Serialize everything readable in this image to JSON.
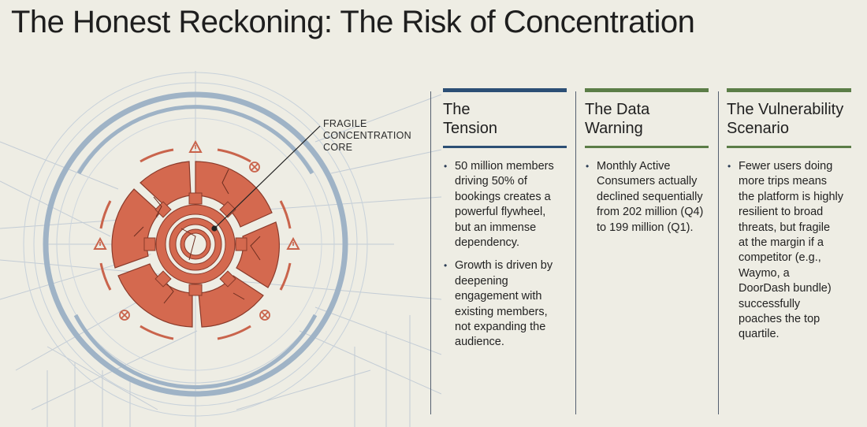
{
  "title": "The Honest Reckoning: The Risk of Concentration",
  "callout": {
    "lines": [
      "FRAGILE",
      "CONCENTRATION",
      "CORE"
    ]
  },
  "columns": [
    {
      "heading": [
        "The",
        "Tension"
      ],
      "accent": "#2c4f75",
      "bullets": [
        [
          "50 million members",
          "driving 50% of",
          "bookings creates a",
          "powerful flywheel,",
          "but an immense",
          "dependency."
        ],
        [
          "Growth is driven by",
          "deepening",
          "engagement with",
          "existing members,",
          "not expanding the",
          "audience."
        ]
      ]
    },
    {
      "heading": [
        "The Data",
        "Warning"
      ],
      "accent": "#5b7d47",
      "bullets": [
        [
          "Monthly Active",
          "Consumers actually",
          "declined sequentially",
          "from 202 million (Q4)",
          "to 199 million (Q1)."
        ]
      ]
    },
    {
      "heading": [
        "The Vulnerability",
        "Scenario"
      ],
      "accent": "#5b7d47",
      "bullets": [
        [
          "Fewer users doing",
          "more trips means",
          "the platform is highly",
          "resilient to broad",
          "threats, but fragile",
          "at the margin if a",
          "competitor (e.g.,",
          "Waymo, a",
          "DoorDash bundle)",
          "successfully",
          "poaches the top",
          "quartile."
        ]
      ]
    }
  ],
  "colors": {
    "background": "#eeede4",
    "core_orange": "#d4694f",
    "core_stroke": "#8a3a2a",
    "outer_ring": "#9fb3c6",
    "blueprint_line": "#b9c4cf",
    "tension_accent": "#2c4f75",
    "warning_accent": "#5b7d47"
  },
  "icons": {
    "warning": "warning-triangle-icon",
    "broken": "x-circle-icon"
  }
}
